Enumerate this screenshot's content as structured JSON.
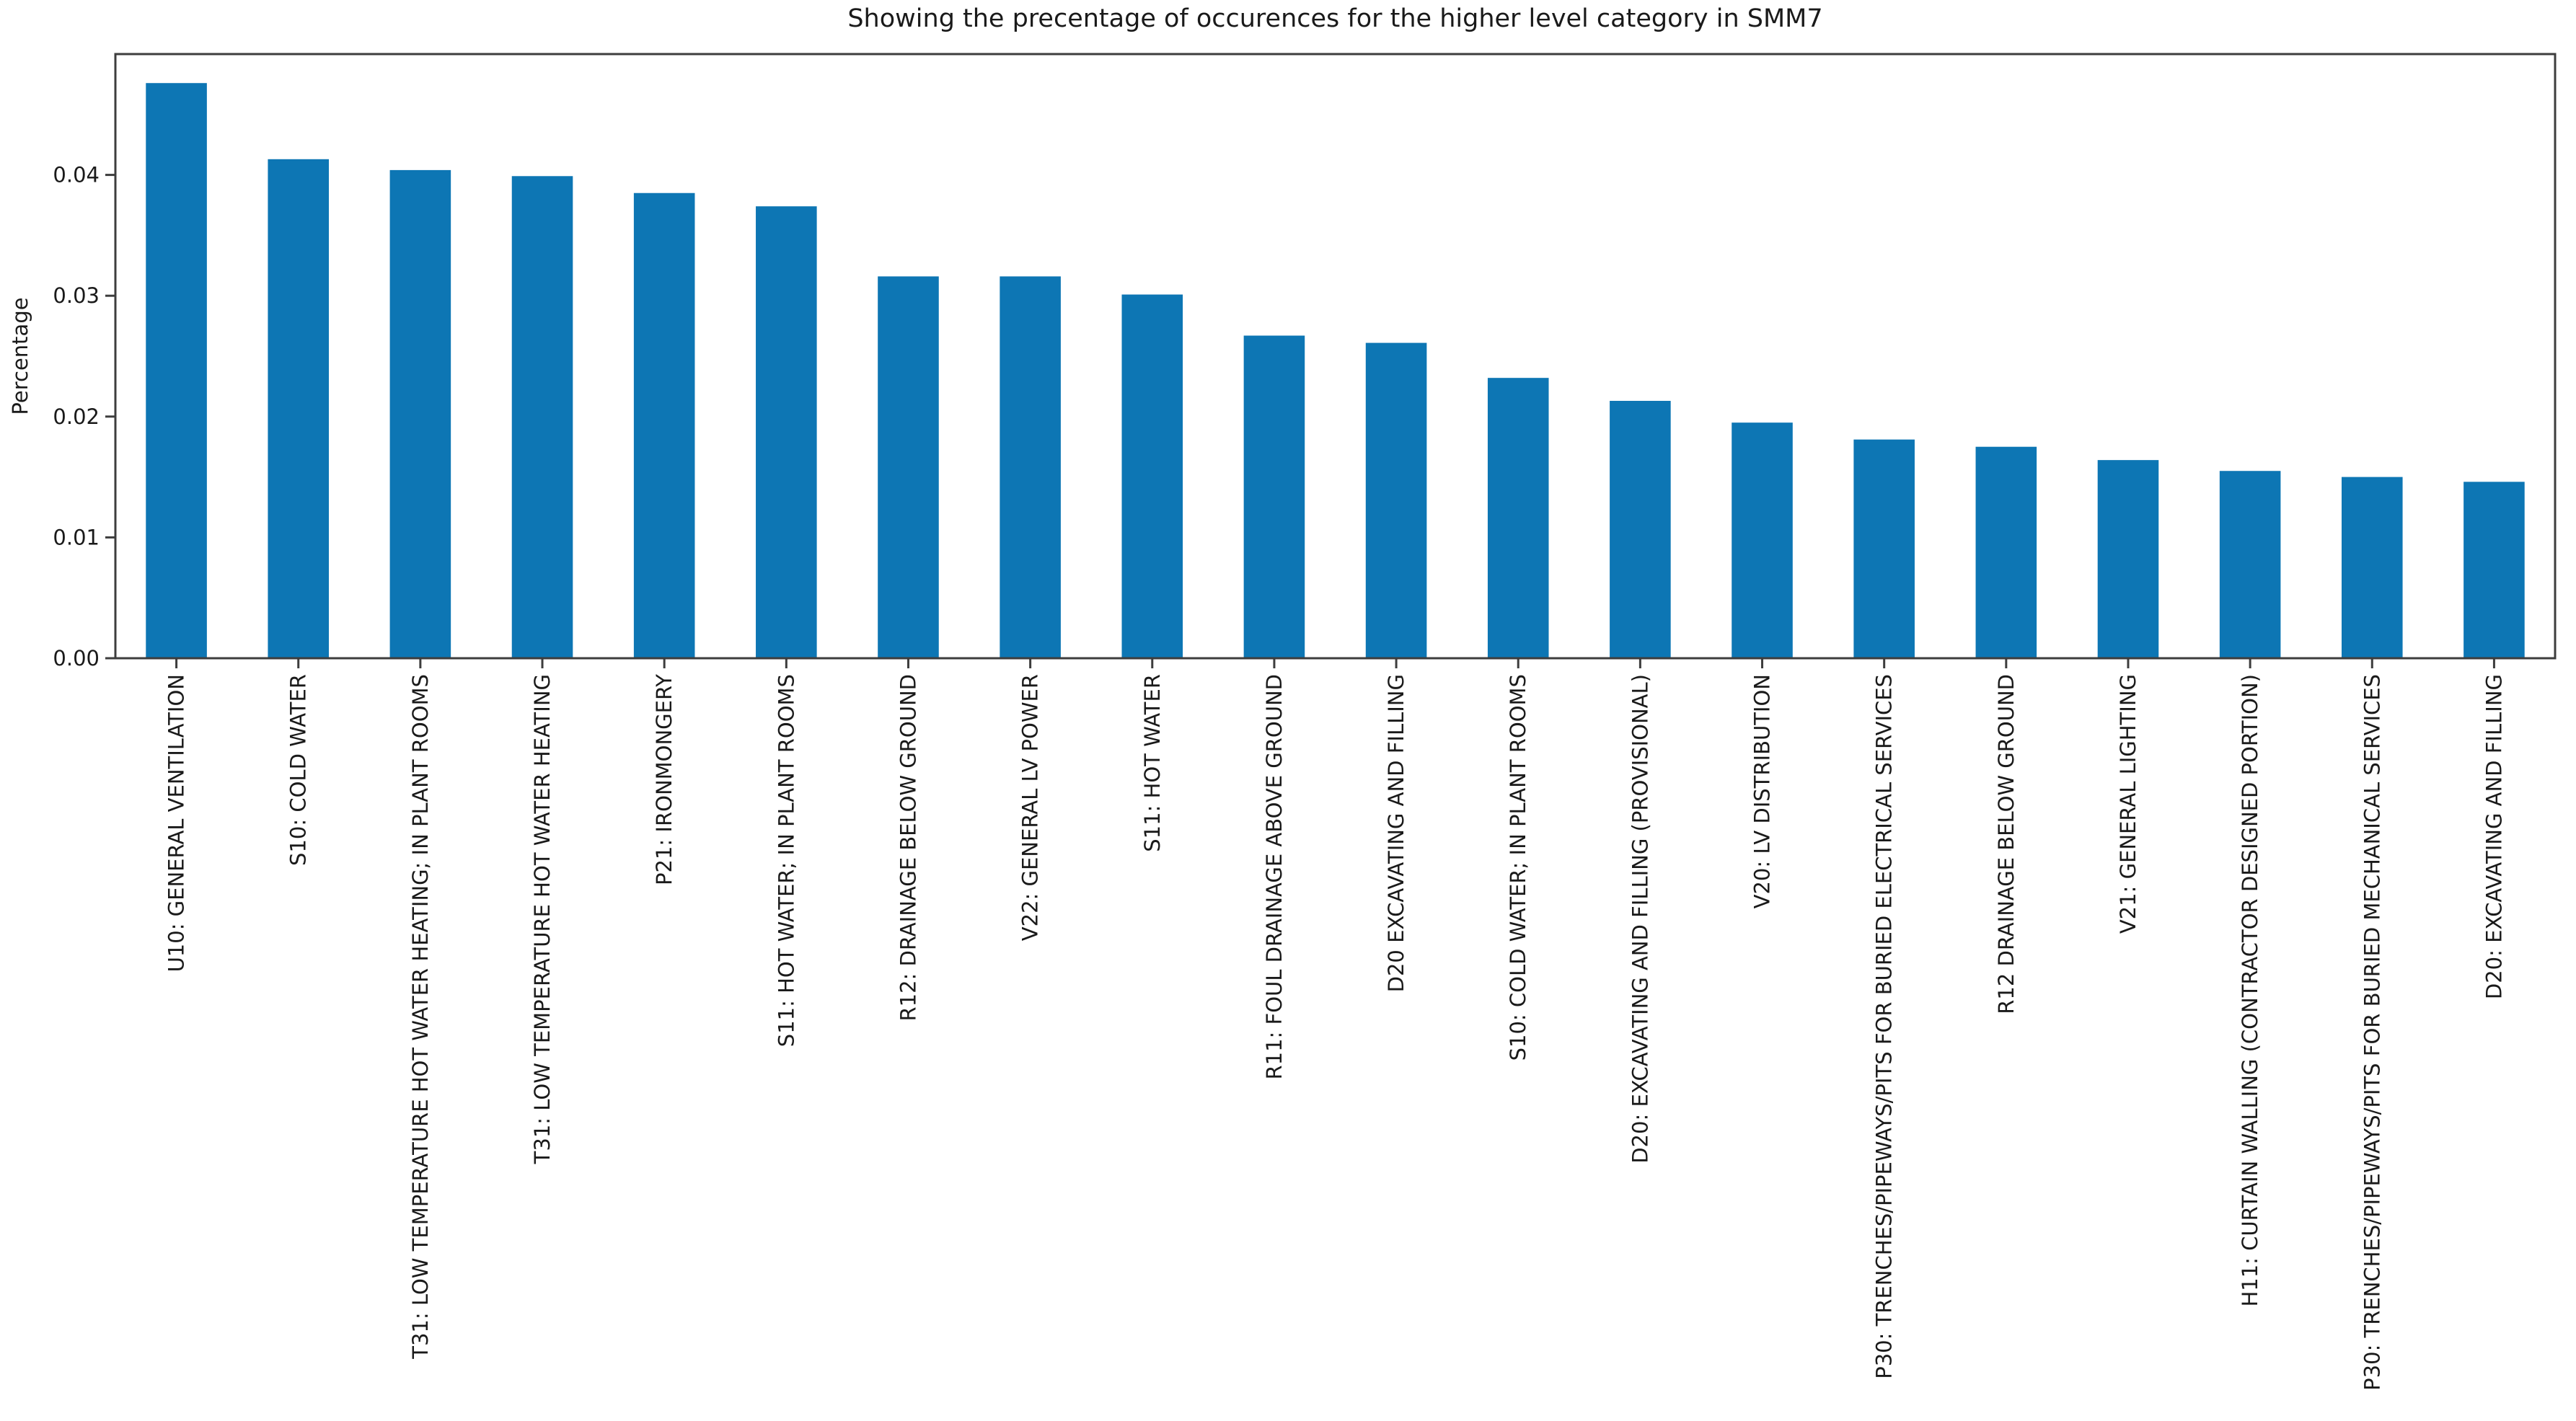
{
  "chart_data": {
    "type": "bar",
    "title": "Showing the precentage of occurences for the higher level category in SMM7",
    "xlabel": "",
    "ylabel": "Percentage",
    "ylim": [
      0,
      0.05
    ],
    "y_ticks": [
      "0.00",
      "0.01",
      "0.02",
      "0.03",
      "0.04"
    ],
    "grid": false,
    "legend": "none",
    "bar_color": "#0d76b4",
    "categories": [
      "U10: GENERAL VENTILATION",
      "S10: COLD WATER",
      "T31: LOW TEMPERATURE HOT WATER HEATING; IN PLANT ROOMS",
      "T31: LOW TEMPERATURE HOT WATER HEATING",
      "P21: IRONMONGERY",
      "S11: HOT WATER; IN PLANT ROOMS",
      "R12: DRAINAGE BELOW GROUND",
      "V22: GENERAL LV POWER",
      "S11: HOT WATER",
      "R11: FOUL DRAINAGE ABOVE GROUND",
      "D20 EXCAVATING AND FILLING",
      "S10: COLD WATER; IN PLANT ROOMS",
      "D20: EXCAVATING AND FILLING (PROVISIONAL)",
      "V20: LV DISTRIBUTION",
      "P30: TRENCHES/PIPEWAYS/PITS FOR BURIED ELECTRICAL SERVICES",
      "R12 DRAINAGE BELOW GROUND",
      "V21: GENERAL LIGHTING",
      "H11: CURTAIN WALLING (CONTRACTOR DESIGNED PORTION)",
      "P30: TRENCHES/PIPEWAYS/PITS FOR BURIED MECHANICAL SERVICES",
      "D20: EXCAVATING AND FILLING"
    ],
    "values": [
      0.0476,
      0.0413,
      0.0404,
      0.0399,
      0.0385,
      0.0374,
      0.0316,
      0.0316,
      0.0301,
      0.0267,
      0.0261,
      0.0232,
      0.0213,
      0.0195,
      0.0181,
      0.0175,
      0.0164,
      0.0155,
      0.015,
      0.0146
    ]
  }
}
